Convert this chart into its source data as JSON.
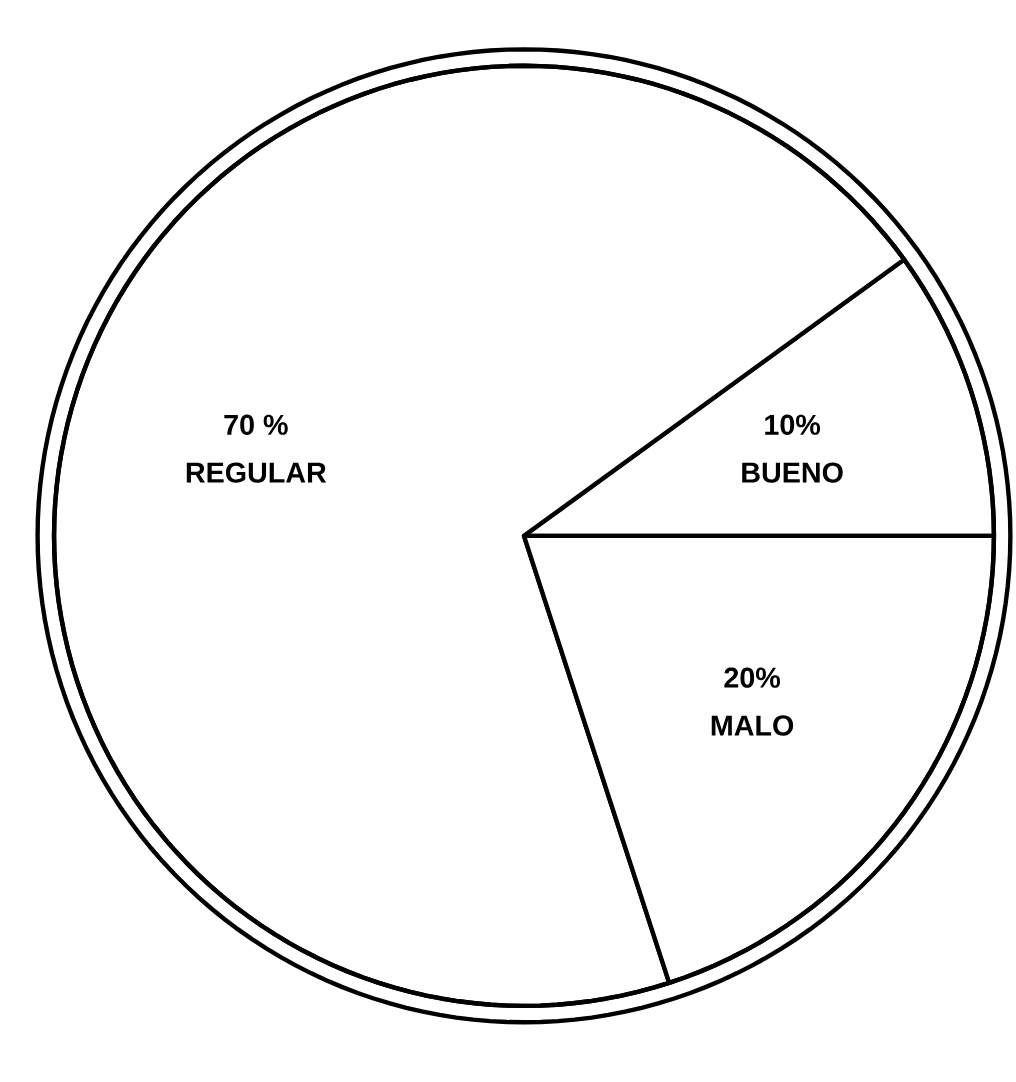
{
  "chart_data": {
    "type": "pie",
    "categories": [
      "BUENO",
      "REGULAR",
      "MALO"
    ],
    "values": [
      10,
      70,
      20
    ],
    "value_labels": [
      "10%",
      "70 %",
      "20%"
    ],
    "colors": [
      "#ffffff",
      "#ffffff",
      "#ffffff"
    ]
  }
}
